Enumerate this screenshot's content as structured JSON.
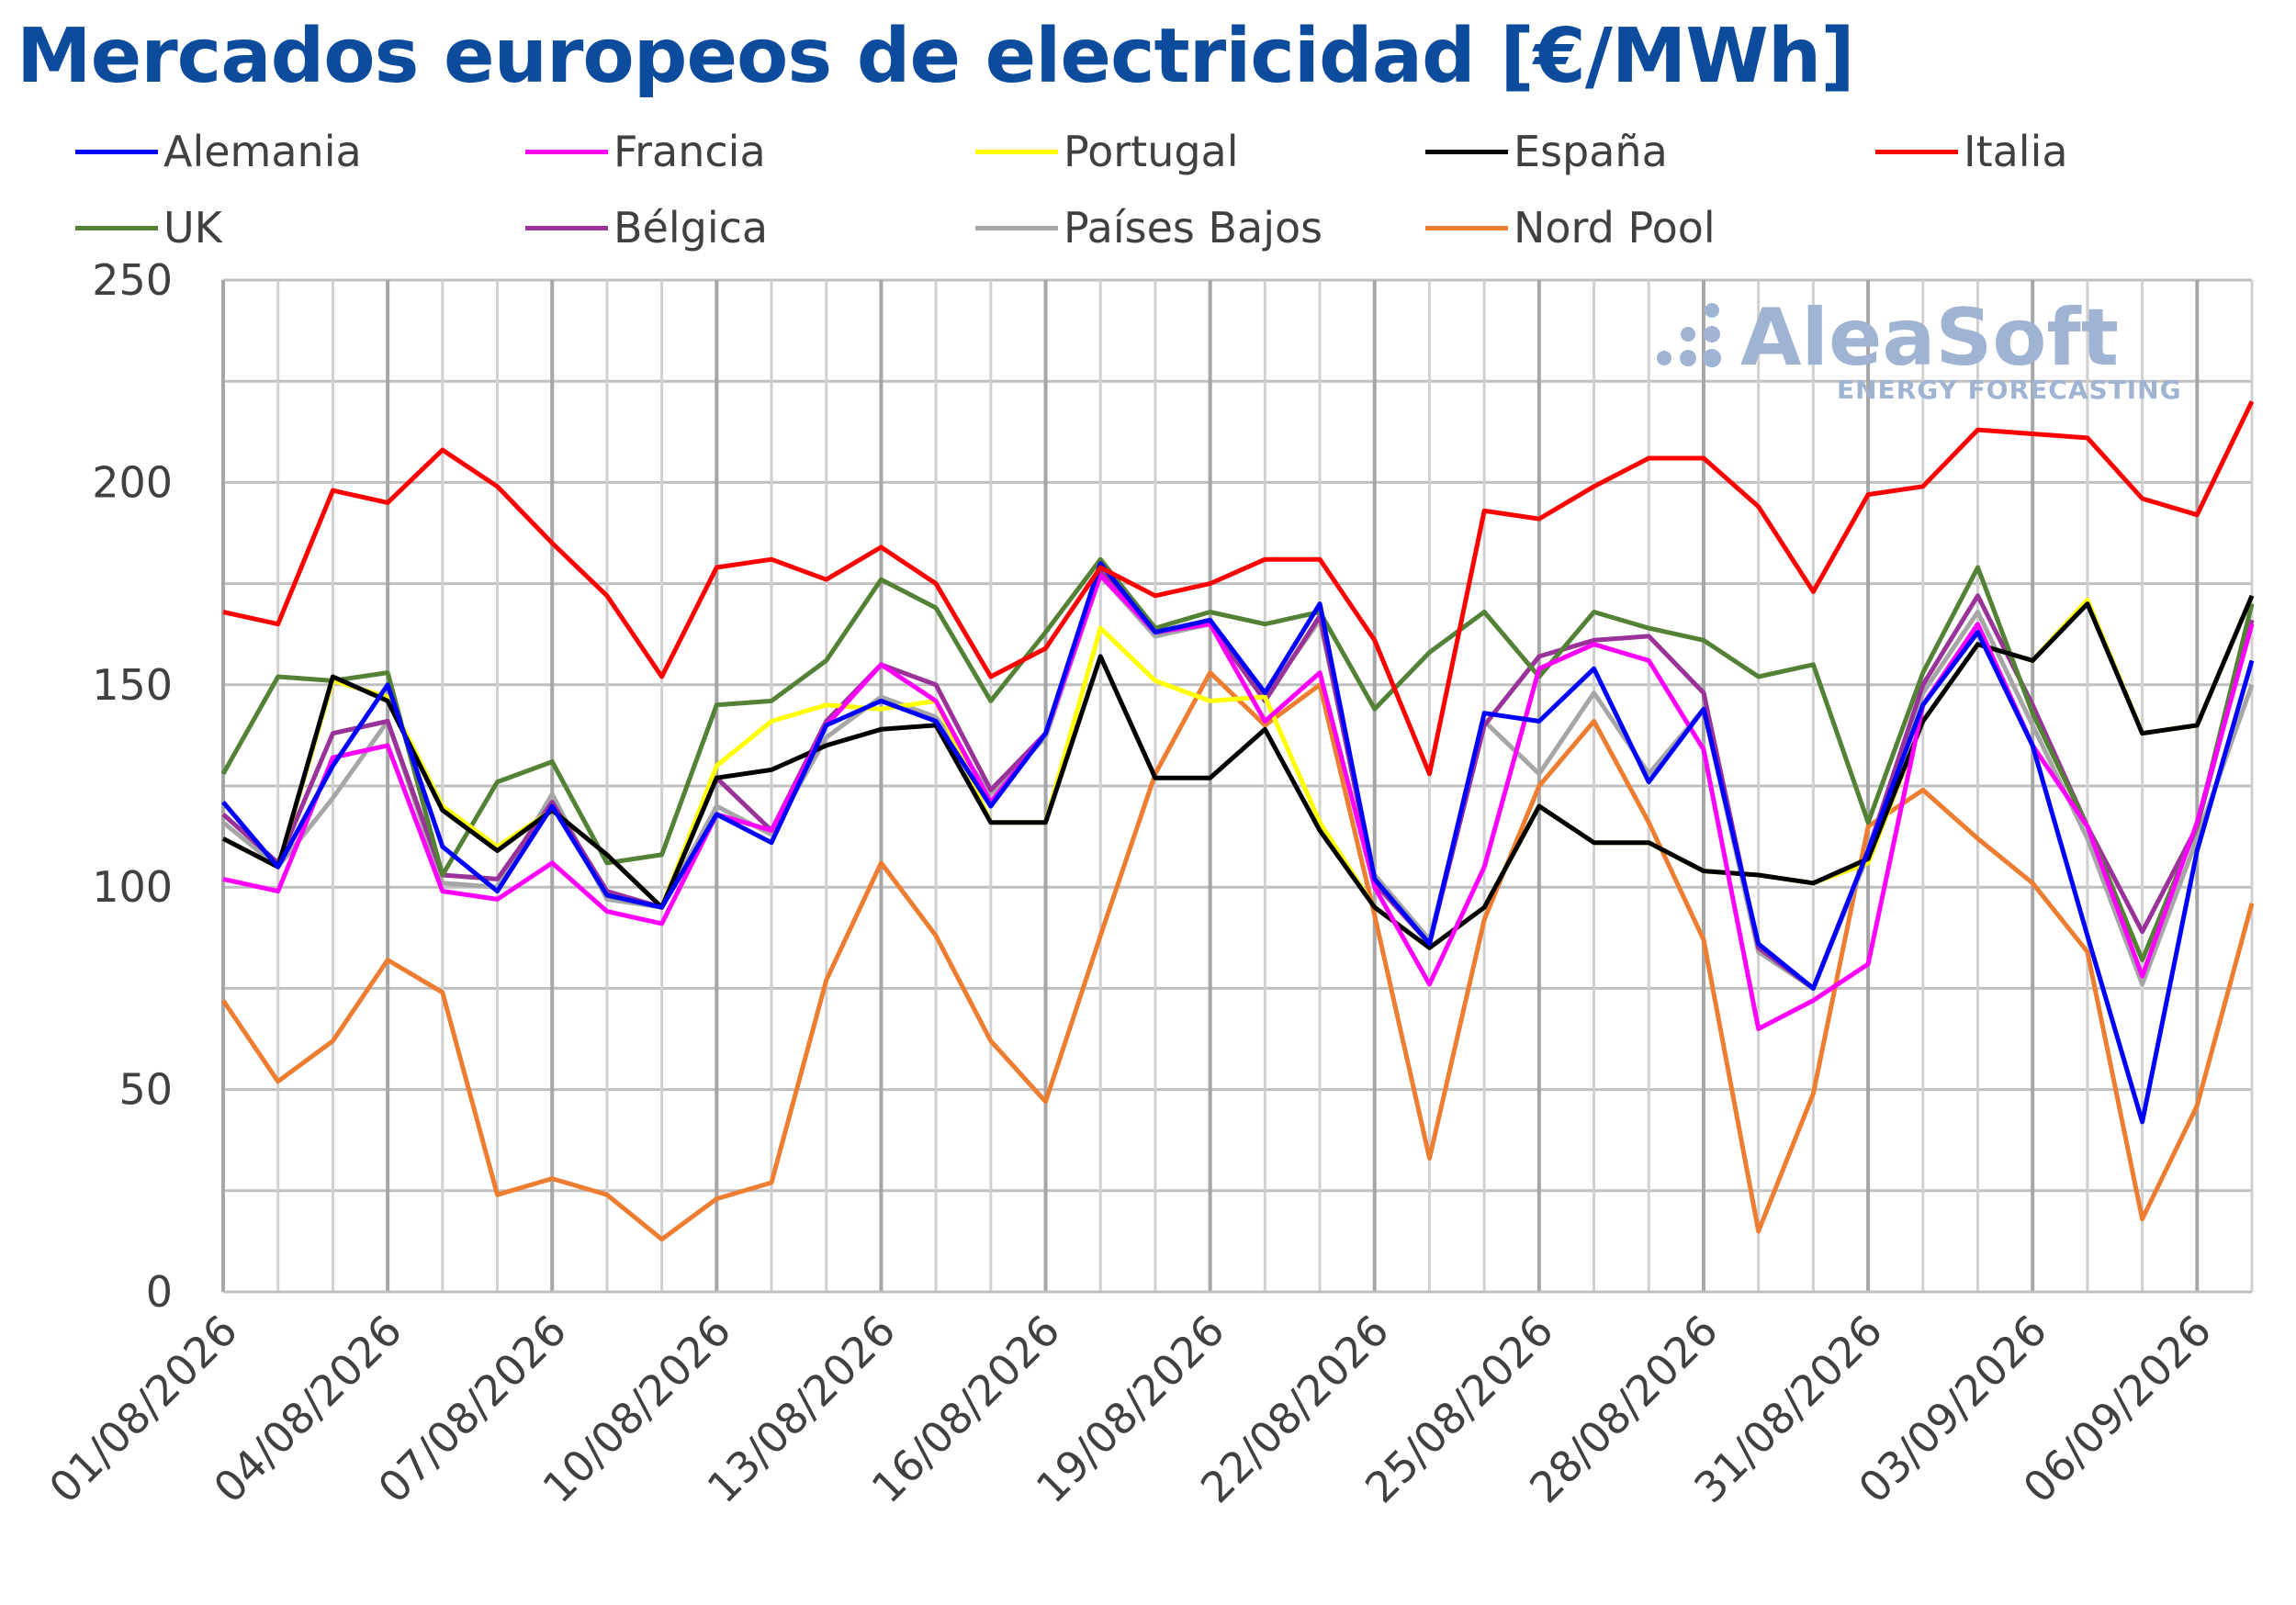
{
  "chart_data": {
    "type": "line",
    "title": "Mercados europeos de electricidad [€/MWh]",
    "xlabel": "",
    "ylabel": "",
    "ylim": [
      0,
      250
    ],
    "yticks": [
      0,
      50,
      100,
      150,
      200,
      250
    ],
    "grid": true,
    "legend_position": "top",
    "x": [
      "01/08/2026",
      "02/08/2026",
      "03/08/2026",
      "04/08/2026",
      "05/08/2026",
      "06/08/2026",
      "07/08/2026",
      "08/08/2026",
      "09/08/2026",
      "10/08/2026",
      "11/08/2026",
      "12/08/2026",
      "13/08/2026",
      "14/08/2026",
      "15/08/2026",
      "16/08/2026",
      "17/08/2026",
      "18/08/2026",
      "19/08/2026",
      "20/08/2026",
      "21/08/2026",
      "22/08/2026",
      "23/08/2026",
      "24/08/2026",
      "25/08/2026",
      "26/08/2026",
      "27/08/2026",
      "28/08/2026",
      "29/08/2026",
      "30/08/2026",
      "31/08/2026",
      "01/09/2026",
      "02/09/2026",
      "03/09/2026",
      "04/09/2026",
      "05/09/2026",
      "06/09/2026",
      "07/09/2026"
    ],
    "xtick_labels": [
      "01/08/2026",
      "04/08/2026",
      "07/08/2026",
      "10/08/2026",
      "13/08/2026",
      "16/08/2026",
      "19/08/2026",
      "22/08/2026",
      "25/08/2026",
      "28/08/2026",
      "31/08/2026",
      "03/09/2026",
      "06/09/2026"
    ],
    "series": [
      {
        "name": "Alemania",
        "color": "#0000ff",
        "values": [
          121,
          105,
          130,
          150,
          110,
          99,
          120,
          98,
          95,
          118,
          111,
          140,
          146,
          141,
          120,
          138,
          180,
          163,
          166,
          148,
          170,
          102,
          86,
          143,
          141,
          154,
          126,
          144,
          86,
          75,
          109,
          145,
          163,
          135,
          88,
          42,
          109,
          156
        ]
      },
      {
        "name": "Francia",
        "color": "#ff00ff",
        "values": [
          102,
          99,
          132,
          135,
          99,
          97,
          106,
          94,
          91,
          118,
          114,
          140,
          155,
          146,
          121,
          138,
          177,
          163,
          165,
          141,
          153,
          100,
          76,
          105,
          154,
          160,
          156,
          134,
          65,
          72,
          81,
          145,
          165,
          135,
          115,
          78,
          116,
          165
        ]
      },
      {
        "name": "Portugal",
        "color": "#ffff00",
        "values": [
          112,
          105,
          151,
          147,
          120,
          110,
          119,
          108,
          95,
          130,
          141,
          145,
          144,
          146,
          116,
          116,
          164,
          151,
          146,
          147,
          116,
          95,
          85,
          95,
          120,
          111,
          111,
          104,
          103,
          101,
          106,
          141,
          160,
          156,
          171,
          138,
          140,
          172
        ]
      },
      {
        "name": "España",
        "color": "#000000",
        "values": [
          112,
          105,
          152,
          146,
          119,
          109,
          119,
          108,
          95,
          127,
          129,
          135,
          139,
          140,
          116,
          116,
          157,
          127,
          127,
          139,
          114,
          95,
          85,
          95,
          120,
          111,
          111,
          104,
          103,
          101,
          107,
          141,
          160,
          156,
          170,
          138,
          140,
          172
        ]
      },
      {
        "name": "Italia",
        "color": "#ff0000",
        "values": [
          168,
          165,
          198,
          195,
          208,
          199,
          185,
          172,
          152,
          179,
          181,
          176,
          184,
          175,
          152,
          159,
          179,
          172,
          175,
          181,
          181,
          161,
          128,
          193,
          191,
          199,
          206,
          206,
          194,
          173,
          197,
          199,
          213,
          212,
          211,
          196,
          192,
          220
        ]
      },
      {
        "name": "UK",
        "color": "#538135",
        "values": [
          128,
          152,
          151,
          153,
          103,
          126,
          131,
          106,
          108,
          145,
          146,
          156,
          176,
          169,
          146,
          163,
          181,
          164,
          168,
          165,
          168,
          144,
          158,
          168,
          152,
          168,
          164,
          161,
          152,
          155,
          116,
          153,
          179,
          143,
          115,
          82,
          115,
          170
        ]
      },
      {
        "name": "Bélgica",
        "color": "#993399",
        "values": [
          118,
          106,
          138,
          141,
          103,
          102,
          121,
          99,
          95,
          127,
          114,
          141,
          155,
          150,
          124,
          138,
          178,
          163,
          165,
          146,
          167,
          101,
          86,
          140,
          157,
          161,
          162,
          148,
          85,
          75,
          109,
          150,
          172,
          145,
          115,
          89,
          115,
          166
        ]
      },
      {
        "name": "Países Bajos",
        "color": "#a6a6a6",
        "values": [
          116,
          105,
          122,
          141,
          101,
          100,
          123,
          97,
          95,
          120,
          113,
          137,
          147,
          142,
          123,
          137,
          177,
          162,
          165,
          147,
          166,
          103,
          87,
          141,
          128,
          148,
          128,
          144,
          84,
          75,
          108,
          148,
          168,
          140,
          112,
          76,
          112,
          150
        ]
      },
      {
        "name": "Nord Pool",
        "color": "#ed7d31",
        "values": [
          72,
          52,
          62,
          82,
          74,
          24,
          28,
          24,
          13,
          23,
          27,
          77,
          106,
          88,
          62,
          47,
          88,
          128,
          153,
          140,
          150,
          93,
          33,
          92,
          125,
          141,
          116,
          87,
          15,
          49,
          115,
          124,
          112,
          101,
          84,
          18,
          46,
          96
        ]
      }
    ]
  },
  "watermark": {
    "brand": "AleaSoft",
    "tagline": "ENERGY FORECASTING"
  }
}
